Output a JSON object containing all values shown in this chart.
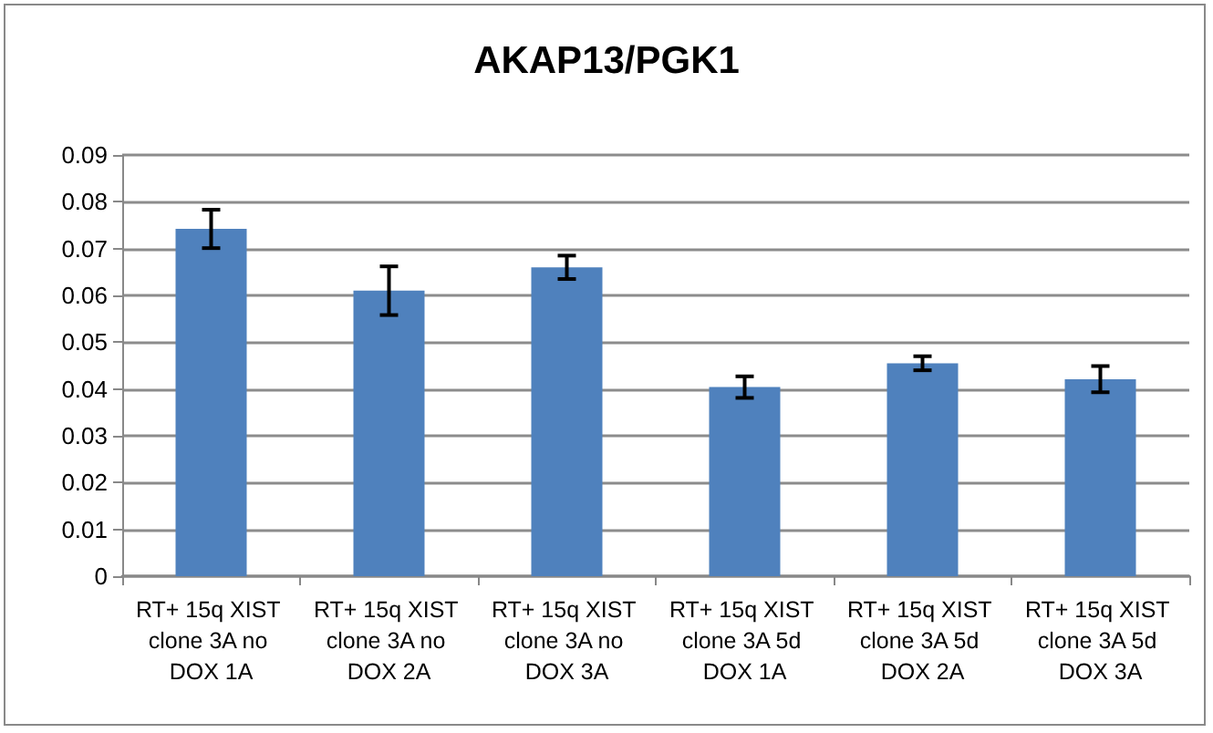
{
  "chart_data": {
    "type": "bar",
    "title": "AKAP13/PGK1",
    "categories": [
      "RT+ 15q XIST clone 3A no DOX 1A",
      "RT+ 15q XIST clone 3A no DOX 2A",
      "RT+ 15q XIST clone 3A no DOX 3A",
      "RT+ 15q XIST clone 3A 5d DOX 1A",
      "RT+ 15q XIST clone 3A 5d DOX 2A",
      "RT+ 15q XIST clone 3A 5d DOX 3A"
    ],
    "values": [
      0.0742,
      0.061,
      0.066,
      0.0404,
      0.0455,
      0.0421
    ],
    "errors": [
      0.0041,
      0.0052,
      0.0025,
      0.0023,
      0.0015,
      0.0028
    ],
    "color": "#4f81bd",
    "ylim": [
      0,
      0.09
    ],
    "yticks": [
      0,
      0.01,
      0.02,
      0.03,
      0.04,
      0.05,
      0.06,
      0.07,
      0.08,
      0.09
    ],
    "grid": true
  }
}
